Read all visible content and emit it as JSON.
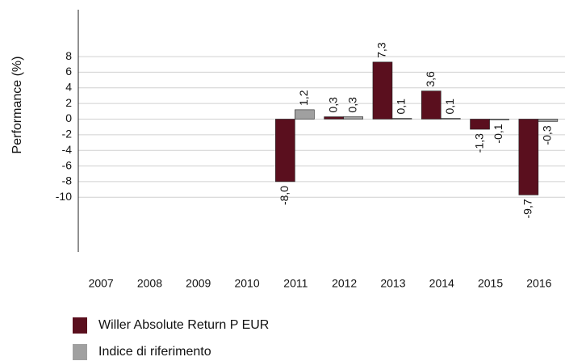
{
  "chart_data": {
    "type": "bar",
    "y_label": "Performance (%)",
    "categories": [
      "2007",
      "2008",
      "2009",
      "2010",
      "2011",
      "2012",
      "2013",
      "2014",
      "2015",
      "2016"
    ],
    "series": [
      {
        "name": "Willer Absolute Return P  EUR",
        "color": "#5a0f1e",
        "values": [
          null,
          null,
          null,
          null,
          -8.0,
          0.3,
          7.3,
          3.6,
          -1.3,
          -9.7
        ],
        "value_labels": [
          null,
          null,
          null,
          null,
          "-8,0",
          "0,3",
          "7,3",
          "3,6",
          "-1,3",
          "-9,7"
        ]
      },
      {
        "name": "Indice di riferimento",
        "color": "#a0a0a0",
        "values": [
          null,
          null,
          null,
          null,
          1.2,
          0.3,
          0.1,
          0.1,
          -0.1,
          -0.3
        ],
        "value_labels": [
          null,
          null,
          null,
          null,
          "1,2",
          "0,3",
          "0,1",
          "0,1",
          "-0,1",
          "-0,3"
        ]
      }
    ],
    "ylim": [
      -17,
      14
    ],
    "yticks": [
      -10,
      -8,
      -6,
      -4,
      -2,
      0,
      2,
      4,
      6,
      8
    ],
    "grid": true
  }
}
